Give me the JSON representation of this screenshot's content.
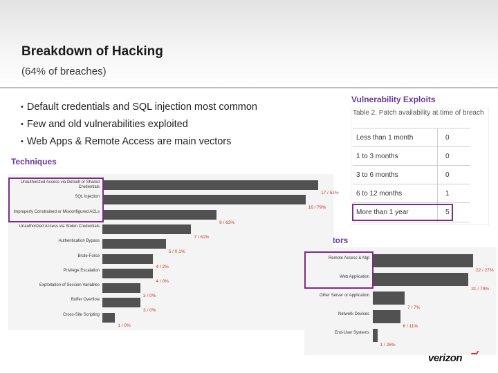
{
  "slide": {
    "title": "Breakdown of Hacking",
    "subtitle": "(64% of breaches)",
    "bullets": [
      "Default credentials and SQL injection most common",
      "Few and old vulnerabilities exploited",
      "Web Apps & Remote Access are main vectors"
    ],
    "techniques_caption": "Techniques",
    "vulnerability_caption": "Vulnerability Exploits",
    "vectors_caption": "Vectors",
    "logo_text": "verizon",
    "highlight_color": "#7d2b8b",
    "caption_color": "#6a3a9a"
  },
  "chart_data": [
    {
      "type": "bar",
      "orientation": "horizontal",
      "categories": [
        "Unauthorized Access via Default or Shared Credentials",
        "SQL Injection",
        "Improperly Constrained or Misconfigured ACLs",
        "Unauthorized Access via Stolen Credentials",
        "Authentication Bypass",
        "Brute-Force",
        "Privilege Escalation",
        "Exploitation of Session Variables",
        "Buffer Overflow",
        "Cross-Site Scripting"
      ],
      "values": [
        17,
        16,
        9,
        7,
        5,
        4,
        4,
        3,
        3,
        1
      ],
      "value_labels": [
        "17 / 51%",
        "16 / 79%",
        "9 / 63%",
        "7 / 61%",
        "5 / 0.1%",
        "4 / 2%",
        "4 / 0%",
        "3 / 0%",
        "3 / 0%",
        "1 / 0%"
      ],
      "xlim": [
        0,
        17
      ],
      "highlighted": [
        0,
        1,
        2
      ]
    },
    {
      "type": "bar",
      "orientation": "horizontal",
      "categories": [
        "Remote Access & Mgt",
        "Web Application",
        "Other Server or Application",
        "Network Devices",
        "End-User Systems"
      ],
      "values": [
        22,
        21,
        7,
        6,
        1
      ],
      "value_labels": [
        "22 / 27%",
        "21 / 79%",
        "7 / 7%",
        "6 / 11%",
        "1 / 26%"
      ],
      "xlim": [
        0,
        22
      ],
      "highlighted": [
        0,
        1
      ]
    }
  ],
  "table": {
    "title": "Table 2. Patch availability at time of breach",
    "rows": [
      {
        "label": "Less than 1 month",
        "value": "0"
      },
      {
        "label": "1 to 3 months",
        "value": "0"
      },
      {
        "label": "3 to 6 months",
        "value": "0"
      },
      {
        "label": "6 to 12 months",
        "value": "1"
      },
      {
        "label": "More than 1 year",
        "value": "5"
      }
    ],
    "highlighted_row": 4
  }
}
